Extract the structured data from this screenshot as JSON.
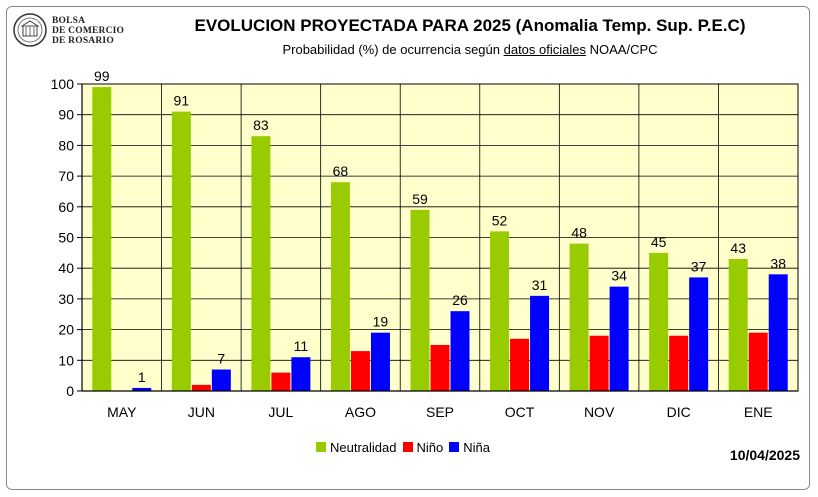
{
  "header": {
    "org_lines": [
      "BOLSA",
      "DE COMERCIO",
      "DE ROSARIO"
    ],
    "title": "EVOLUCION PROYECTADA PARA 2025 (Anomalia Temp. Sup. P.E.C)",
    "subtitle_pre": "Probabilidad (%) de ocurrencia según ",
    "subtitle_link": "datos oficiales",
    "subtitle_post": " NOAA/CPC"
  },
  "date_stamp": "10/04/2025",
  "chart_data": {
    "type": "bar",
    "title": "EVOLUCION PROYECTADA PARA 2025 (Anomalia Temp. Sup. P.E.C)",
    "categories": [
      "MAY",
      "JUN",
      "JUL",
      "AGO",
      "SEP",
      "OCT",
      "NOV",
      "DIC",
      "ENE"
    ],
    "series": [
      {
        "name": "Neutralidad",
        "color": "#99cc00",
        "values": [
          99,
          91,
          83,
          68,
          59,
          52,
          48,
          45,
          43
        ],
        "labeled": true
      },
      {
        "name": "Niño",
        "color": "#ff0000",
        "values": [
          0,
          2,
          6,
          13,
          15,
          17,
          18,
          18,
          19
        ],
        "labeled": false
      },
      {
        "name": "Niña",
        "color": "#0000ff",
        "values": [
          1,
          7,
          11,
          19,
          26,
          31,
          34,
          37,
          38
        ],
        "labeled": true
      }
    ],
    "ylim": [
      0,
      100
    ],
    "yticks": [
      0,
      10,
      20,
      30,
      40,
      50,
      60,
      70,
      80,
      90,
      100
    ],
    "grid": true,
    "legend_position": "bottom",
    "plot_background": "#ffffcc"
  }
}
